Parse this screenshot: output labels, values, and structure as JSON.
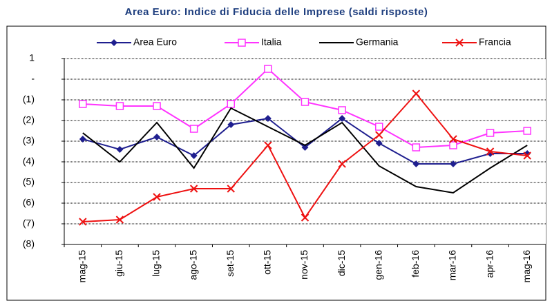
{
  "chart_data": {
    "type": "line",
    "title": "Area Euro: Indice di Fiducia delle Imprese (saldi risposte)",
    "categories": [
      "mag-15",
      "giu-15",
      "lug-15",
      "ago-15",
      "set-15",
      "ott-15",
      "nov-15",
      "dic-15",
      "gen-16",
      "feb-16",
      "mar-16",
      "apr-16",
      "mag-16"
    ],
    "series": [
      {
        "name": "Area Euro",
        "color": "#1f1f8f",
        "marker": "diamond",
        "values": [
          -2.9,
          -3.4,
          -2.8,
          -3.7,
          -2.2,
          -1.9,
          -3.3,
          -1.9,
          -3.1,
          -4.1,
          -4.1,
          -3.6,
          -3.6
        ]
      },
      {
        "name": "Italia",
        "color": "#ff33ff",
        "marker": "square",
        "values": [
          -1.2,
          -1.3,
          -1.3,
          -2.4,
          -1.2,
          0.5,
          -1.1,
          -1.5,
          -2.3,
          -3.3,
          -3.2,
          -2.6,
          -2.5
        ]
      },
      {
        "name": "Germania",
        "color": "#000000",
        "marker": "none",
        "values": [
          -2.6,
          -4.0,
          -2.1,
          -4.3,
          -1.4,
          -2.3,
          -3.2,
          -2.1,
          -4.2,
          -5.2,
          -5.5,
          -4.3,
          -3.2
        ]
      },
      {
        "name": "Francia",
        "color": "#ee1111",
        "marker": "x",
        "values": [
          -6.9,
          -6.8,
          -5.7,
          -5.3,
          -5.3,
          -3.2,
          -6.7,
          -4.1,
          -2.7,
          -0.7,
          -2.9,
          -3.5,
          -3.7
        ]
      }
    ],
    "ylim": [
      -8,
      1
    ],
    "yticks": [
      {
        "value": -8,
        "label": "(8)"
      },
      {
        "value": -7,
        "label": "(7)"
      },
      {
        "value": -6,
        "label": "(6)"
      },
      {
        "value": -5,
        "label": "(5)"
      },
      {
        "value": -4,
        "label": "(4)"
      },
      {
        "value": -3,
        "label": "(3)"
      },
      {
        "value": -2,
        "label": "(2)"
      },
      {
        "value": -1,
        "label": "(1)"
      },
      {
        "value": 0,
        "label": "-"
      },
      1
    ],
    "grid": true
  }
}
